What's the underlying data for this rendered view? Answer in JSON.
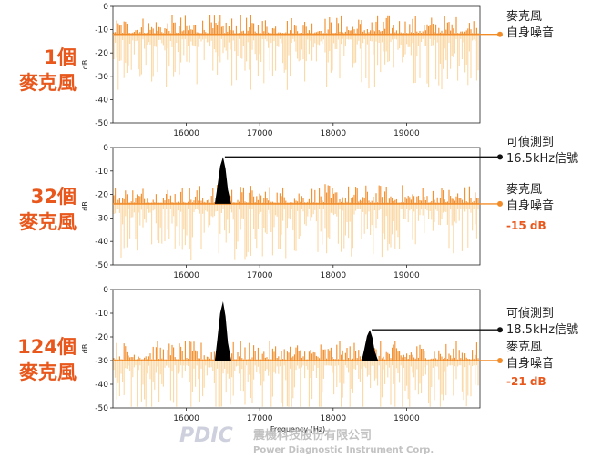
{
  "chart_data": [
    {
      "type": "line",
      "left_label": [
        "1個",
        "麥克風"
      ],
      "x_ticks": [
        16000,
        17000,
        18000,
        19000
      ],
      "y_ticks": [
        0,
        -10,
        -20,
        -30,
        -40,
        -50
      ],
      "xlim": [
        15000,
        20000
      ],
      "ylim": [
        -50,
        0
      ],
      "ylabel": "dB",
      "noise_floor_db": -12,
      "signals": [],
      "annotations": [
        {
          "text": [
            "麥克風",
            "自身噪音"
          ],
          "y": -12,
          "color": "#f28c28"
        }
      ],
      "db_note": ""
    },
    {
      "type": "line",
      "left_label": [
        "32個",
        "麥克風"
      ],
      "x_ticks": [
        16000,
        17000,
        18000,
        19000
      ],
      "y_ticks": [
        0,
        -10,
        -20,
        -30,
        -40,
        -50
      ],
      "xlim": [
        15000,
        20000
      ],
      "ylim": [
        -50,
        0
      ],
      "ylabel": "dB",
      "noise_floor_db": -24,
      "signals": [
        {
          "freq_hz": 16500,
          "peak_db": -4
        }
      ],
      "annotations": [
        {
          "text": [
            "可偵測到",
            "16.5kHz信號"
          ],
          "y": -4,
          "color": "#111111"
        },
        {
          "text": [
            "麥克風",
            "自身噪音"
          ],
          "y": -24,
          "color": "#f28c28"
        }
      ],
      "db_note": "-15 dB"
    },
    {
      "type": "line",
      "left_label": [
        "124個",
        "麥克風"
      ],
      "x_ticks": [
        16000,
        17000,
        18000,
        19000
      ],
      "y_ticks": [
        0,
        -10,
        -20,
        -30,
        -40,
        -50
      ],
      "xlim": [
        15000,
        20000
      ],
      "ylim": [
        -50,
        0
      ],
      "ylabel": "dB",
      "xlabel": "Frequency (Hz)",
      "noise_floor_db": -30,
      "signals": [
        {
          "freq_hz": 16500,
          "peak_db": -5
        },
        {
          "freq_hz": 18500,
          "peak_db": -17
        }
      ],
      "annotations": [
        {
          "text": [
            "可偵測到",
            "18.5kHz信號"
          ],
          "y": -17,
          "color": "#111111"
        },
        {
          "text": [
            "麥克風",
            "自身噪音"
          ],
          "y": -30,
          "color": "#f28c28"
        }
      ],
      "db_note": "-21 dB"
    }
  ],
  "watermark": {
    "logo": "PDIC",
    "company_zh": "震機科技股份有限公司",
    "company_en": "Power Diagnostic Instrument Corp."
  },
  "colors": {
    "noise_dark": "#f28c28",
    "noise_light": "#fbd9a6",
    "signal": "#000000",
    "label": "#e8581c"
  }
}
